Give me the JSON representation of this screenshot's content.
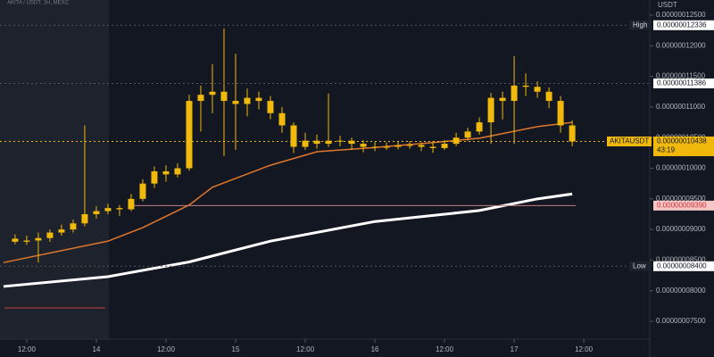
{
  "chart_data": {
    "type": "candlestick",
    "title": "AKITA / USDT, 1H, MEXC",
    "y_label": "USDT",
    "color": "#f0b90b",
    "x": [
      10,
      12,
      14,
      16,
      18,
      20,
      22,
      24,
      26,
      28,
      30,
      32,
      34,
      36,
      38,
      40,
      42,
      44,
      46,
      48,
      50,
      52,
      54,
      56,
      58,
      60,
      62,
      64,
      66,
      68,
      70,
      72,
      74,
      76,
      78,
      80,
      82,
      84,
      86,
      88,
      90,
      92,
      94,
      96,
      98,
      100,
      102,
      104,
      106
    ],
    "open": [
      8.85e-08,
      8.8e-08,
      8.82e-08,
      8.86e-08,
      8.95e-08,
      9e-08,
      9.1e-08,
      9.25e-08,
      9.3e-08,
      9.35e-08,
      9.33e-08,
      9.5e-08,
      9.75e-08,
      9.95e-08,
      9.9e-08,
      1e-07,
      1.11e-07,
      1.12e-07,
      1.125e-07,
      1.11e-07,
      1.105e-07,
      1.115e-07,
      1.11e-07,
      1.09e-07,
      1.07e-07,
      1.035e-07,
      1.045e-07,
      1.04e-07,
      1.045e-07,
      1.045e-07,
      1.04e-07,
      1.035e-07,
      1.035e-07,
      1.035e-07,
      1.037e-07,
      1.038e-07,
      1.035e-07,
      1.033e-07,
      1.04e-07,
      1.05e-07,
      1.06e-07,
      1.075e-07,
      1.115e-07,
      1.11e-07,
      1.135e-07,
      1.133e-07,
      1.125e-07,
      1.11e-07,
      1.07e-07
    ],
    "high": [
      8.92e-08,
      8.9e-08,
      8.95e-08,
      9e-08,
      9.08e-08,
      9.16e-08,
      1.07e-07,
      9.38e-08,
      9.42e-08,
      9.4e-08,
      9.58e-08,
      9.82e-08,
      1.003e-07,
      1.005e-07,
      1.008e-07,
      1.12e-07,
      1.135e-07,
      1.17e-07,
      1.228e-07,
      1.187e-07,
      1.13e-07,
      1.125e-07,
      1.118e-07,
      1.1e-07,
      1.075e-07,
      1.058e-07,
      1.055e-07,
      1.122e-07,
      1.053e-07,
      1.05e-07,
      1.046e-07,
      1.043e-07,
      1.042e-07,
      1.043e-07,
      1.044e-07,
      1.042e-07,
      1.044e-07,
      1.046e-07,
      1.058e-07,
      1.066e-07,
      1.083e-07,
      1.123e-07,
      1.125e-07,
      1.183e-07,
      1.155e-07,
      1.142e-07,
      1.132e-07,
      1.118e-07,
      1.078e-07
    ],
    "low": [
      8.76e-08,
      8.75e-08,
      8.46e-08,
      8.8e-08,
      8.9e-08,
      8.95e-08,
      9.05e-08,
      9.18e-08,
      9.25e-08,
      9.22e-08,
      9.3e-08,
      9.46e-08,
      9.68e-08,
      9.78e-08,
      9.85e-08,
      9.96e-08,
      1.06e-07,
      1.09e-07,
      1.02e-07,
      1.03e-07,
      1.085e-07,
      1.096e-07,
      1.08e-07,
      1.058e-07,
      1.025e-07,
      1.03e-07,
      1.032e-07,
      1.035e-07,
      1.036e-07,
      1.03e-07,
      1.026e-07,
      1.028e-07,
      1.03e-07,
      1.031e-07,
      1.032e-07,
      1.028e-07,
      1.025e-07,
      1.03e-07,
      1.036e-07,
      1.045e-07,
      1.055e-07,
      1.04e-07,
      1.08e-07,
      1.04e-07,
      1.118e-07,
      1.115e-07,
      1.098e-07,
      1.058e-07,
      1.036e-07
    ],
    "close": [
      8.8e-08,
      8.82e-08,
      8.86e-08,
      8.95e-08,
      9e-08,
      9.1e-08,
      9.25e-08,
      9.3e-08,
      9.35e-08,
      9.33e-08,
      9.5e-08,
      9.75e-08,
      9.95e-08,
      9.9e-08,
      1e-07,
      1.11e-07,
      1.12e-07,
      1.125e-07,
      1.11e-07,
      1.105e-07,
      1.115e-07,
      1.11e-07,
      1.09e-07,
      1.07e-07,
      1.035e-07,
      1.045e-07,
      1.04e-07,
      1.045e-07,
      1.045e-07,
      1.04e-07,
      1.035e-07,
      1.035e-07,
      1.035e-07,
      1.037e-07,
      1.038e-07,
      1.035e-07,
      1.033e-07,
      1.04e-07,
      1.05e-07,
      1.06e-07,
      1.075e-07,
      1.115e-07,
      1.11e-07,
      1.135e-07,
      1.133e-07,
      1.125e-07,
      1.11e-07,
      1.07e-07,
      1.0438e-07
    ],
    "series": [
      {
        "color": "#e0772b",
        "x": [
          8,
          26,
          32,
          40,
          44,
          54,
          62,
          72,
          82,
          90,
          100,
          106
        ],
        "values": [
          8.46e-08,
          8.81e-08,
          9.03e-08,
          9.4e-08,
          9.69e-08,
          1.005e-07,
          1.027e-07,
          1.034e-07,
          1.042e-07,
          1.049e-07,
          1.068e-07,
          1.075e-07
        ]
      },
      {
        "color": "#ffffff",
        "x": [
          8,
          26,
          40,
          54,
          72,
          90,
          100,
          106
        ],
        "values": [
          8.07e-08,
          8.23e-08,
          8.47e-08,
          8.81e-08,
          9.13e-08,
          9.31e-08,
          9.5e-08,
          9.58e-08
        ]
      }
    ],
    "levels": [
      {
        "value": 7.72e-08,
        "color": "#8b3a3a"
      }
    ],
    "price_labels": [
      {
        "label": "High",
        "value": 1.2336e-07,
        "value_label": "0.00000012336",
        "color": "#ffffff"
      },
      {
        "value": 1.1386e-07,
        "value_label": "0.00000011386",
        "color": "#ffffff"
      },
      {
        "label": "AKITAUSDT",
        "value": 1.0438e-07,
        "value_label": "0.00000010438",
        "countdown": "43:19",
        "color": "#f0b90b"
      },
      {
        "value": 9.39e-08,
        "value_label": "0.00000009390",
        "color": "#f6c6c6"
      },
      {
        "label": "Low",
        "value": 8.4e-08,
        "value_label": "0.00000008400",
        "color": "#ffffff"
      }
    ],
    "xlim": [
      7.4,
      118.9
    ],
    "ylim": [
      7.209e-08,
      1.2748e-07
    ],
    "xticks": [
      {
        "value": 12,
        "label": "12:00"
      },
      {
        "value": 24,
        "label": "14"
      },
      {
        "value": 36,
        "label": "12:00"
      },
      {
        "value": 48,
        "label": "15"
      },
      {
        "value": 60,
        "label": "12:00"
      },
      {
        "value": 72,
        "label": "16"
      },
      {
        "value": 84,
        "label": "12:00"
      },
      {
        "value": 96,
        "label": "17"
      },
      {
        "value": 108,
        "label": "12:00"
      }
    ],
    "yticks": [
      {
        "value": 1.25e-07,
        "label": "0.00000012500"
      },
      {
        "value": 1.2e-07,
        "label": "0.00000012000"
      },
      {
        "value": 1.15e-07,
        "label": "0.00000011500"
      },
      {
        "value": 1.1e-07,
        "label": "0.00000011000"
      },
      {
        "value": 1.05e-07,
        "label": "0.00000010500"
      },
      {
        "value": 1e-07,
        "label": "0.00000010000"
      },
      {
        "value": 9.5e-08,
        "label": "0.00000009500"
      },
      {
        "value": 9e-08,
        "label": "0.00000009000"
      },
      {
        "value": 8.5e-08,
        "label": "0.00000008500"
      },
      {
        "value": 8e-08,
        "label": "0.00000008000"
      },
      {
        "value": 7.5e-08,
        "label": "0.00000007500"
      }
    ]
  }
}
